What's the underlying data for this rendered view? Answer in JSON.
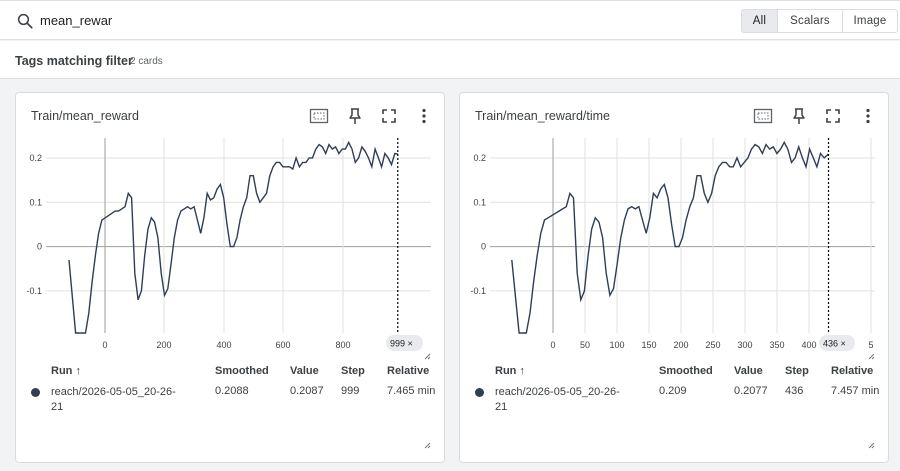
{
  "search": {
    "value": "mean_rewar"
  },
  "filter_tabs": [
    {
      "label": "All",
      "active": true
    },
    {
      "label": "Scalars",
      "active": false
    },
    {
      "label": "Image",
      "active": false
    }
  ],
  "filter_header": {
    "title": "Tags matching filter",
    "count": "2 cards"
  },
  "colors": {
    "series": "#2f3d55",
    "grid": "#e0e0e0",
    "axis": "#9e9e9e"
  },
  "table_headers": {
    "run": "Run ↑",
    "smoothed": "Smoothed",
    "value": "Value",
    "step": "Step",
    "relative": "Relative"
  },
  "cards": [
    {
      "title": "Train/mean_reward",
      "y_ticks": [
        "0.2",
        "0.1",
        "0",
        "-0.1"
      ],
      "x_ticks": [
        "0",
        "200",
        "400",
        "600",
        "800"
      ],
      "step_badge": "999 ×",
      "row": {
        "run": "reach/2026-05-05_20-26-21",
        "smoothed": "0.2088",
        "value": "0.2087",
        "step": "999",
        "relative": "7.465 min"
      }
    },
    {
      "title": "Train/mean_reward/time",
      "y_ticks": [
        "0.2",
        "0.1",
        "0",
        "-0.1"
      ],
      "x_ticks": [
        "0",
        "50",
        "100",
        "150",
        "200",
        "250",
        "300",
        "350",
        "400",
        "5"
      ],
      "step_badge": "436 ×",
      "row": {
        "run": "reach/2026-05-05_20-26-21",
        "smoothed": "0.209",
        "value": "0.2077",
        "step": "436",
        "relative": "7.457 min"
      }
    }
  ],
  "chart_data": [
    {
      "type": "line",
      "title": "Train/mean_reward",
      "xlim": [
        -70,
        1100
      ],
      "ylim": [
        -0.195,
        0.245
      ],
      "grid": true,
      "series": [
        {
          "x": [
            0,
            20,
            40,
            50,
            60,
            70,
            80,
            90,
            100,
            110,
            120,
            130,
            140,
            150,
            160,
            170,
            180,
            190,
            200,
            210,
            220,
            230,
            240,
            250,
            260,
            270,
            280,
            290,
            300,
            310,
            320,
            330,
            340,
            350,
            360,
            370,
            380,
            390,
            400,
            410,
            420,
            430,
            440,
            450,
            460,
            470,
            480,
            490,
            500,
            510,
            520,
            530,
            540,
            550,
            560,
            570,
            580,
            590,
            600,
            610,
            620,
            630,
            640,
            650,
            660,
            670,
            680,
            690,
            700,
            710,
            720,
            730,
            740,
            750,
            760,
            770,
            780,
            790,
            800,
            810,
            820,
            830,
            840,
            850,
            860,
            870,
            880,
            890,
            900,
            910,
            920,
            930,
            940,
            950,
            960,
            970,
            980,
            990,
            999
          ],
          "y": [
            -0.03,
            -0.2,
            -0.2,
            -0.2,
            -0.15,
            -0.08,
            -0.02,
            0.03,
            0.06,
            0.065,
            0.07,
            0.075,
            0.08,
            0.08,
            0.085,
            0.09,
            0.12,
            0.11,
            -0.06,
            -0.12,
            -0.1,
            -0.02,
            0.04,
            0.065,
            0.055,
            0.02,
            -0.06,
            -0.11,
            -0.095,
            -0.04,
            0.02,
            0.06,
            0.08,
            0.085,
            0.09,
            0.085,
            0.09,
            0.06,
            0.03,
            0.065,
            0.12,
            0.105,
            0.11,
            0.13,
            0.14,
            0.11,
            0.05,
            0.0,
            0.0,
            0.02,
            0.06,
            0.09,
            0.11,
            0.16,
            0.16,
            0.12,
            0.1,
            0.11,
            0.12,
            0.16,
            0.18,
            0.19,
            0.19,
            0.18,
            0.18,
            0.18,
            0.175,
            0.2,
            0.18,
            0.19,
            0.19,
            0.2,
            0.2,
            0.22,
            0.23,
            0.225,
            0.21,
            0.23,
            0.22,
            0.225,
            0.21,
            0.22,
            0.22,
            0.235,
            0.22,
            0.19,
            0.2,
            0.225,
            0.215,
            0.2,
            0.18,
            0.22,
            0.2,
            0.18,
            0.21,
            0.2,
            0.185,
            0.21,
            0.209
          ]
        }
      ]
    },
    {
      "type": "line",
      "title": "Train/mean_reward/time",
      "xlim": [
        -30,
        500
      ],
      "ylim": [
        -0.195,
        0.245
      ],
      "grid": true,
      "series": [
        {
          "x": [
            0,
            10,
            20,
            25,
            30,
            35,
            40,
            45,
            50,
            55,
            60,
            65,
            70,
            75,
            80,
            85,
            90,
            95,
            100,
            105,
            110,
            115,
            120,
            125,
            130,
            135,
            140,
            145,
            150,
            155,
            160,
            165,
            170,
            175,
            180,
            185,
            190,
            195,
            200,
            205,
            210,
            215,
            220,
            225,
            230,
            235,
            240,
            245,
            250,
            255,
            260,
            265,
            270,
            275,
            280,
            285,
            290,
            295,
            300,
            305,
            310,
            315,
            320,
            325,
            330,
            335,
            340,
            345,
            350,
            355,
            360,
            365,
            370,
            375,
            380,
            385,
            390,
            395,
            400,
            405,
            410,
            415,
            420,
            425,
            430,
            436
          ],
          "y": [
            -0.03,
            -0.2,
            -0.2,
            -0.15,
            -0.08,
            -0.02,
            0.03,
            0.06,
            0.065,
            0.07,
            0.075,
            0.08,
            0.085,
            0.09,
            0.12,
            0.11,
            -0.06,
            -0.12,
            -0.1,
            -0.02,
            0.04,
            0.065,
            0.055,
            0.02,
            -0.06,
            -0.11,
            -0.095,
            -0.04,
            0.02,
            0.06,
            0.085,
            0.09,
            0.085,
            0.09,
            0.06,
            0.03,
            0.065,
            0.12,
            0.11,
            0.13,
            0.14,
            0.11,
            0.05,
            0.0,
            0.0,
            0.02,
            0.06,
            0.09,
            0.11,
            0.16,
            0.16,
            0.12,
            0.1,
            0.12,
            0.16,
            0.18,
            0.19,
            0.19,
            0.18,
            0.18,
            0.2,
            0.18,
            0.19,
            0.2,
            0.22,
            0.23,
            0.225,
            0.21,
            0.23,
            0.22,
            0.225,
            0.21,
            0.22,
            0.235,
            0.22,
            0.19,
            0.2,
            0.225,
            0.2,
            0.18,
            0.22,
            0.2,
            0.18,
            0.21,
            0.2,
            0.209
          ]
        }
      ]
    }
  ]
}
